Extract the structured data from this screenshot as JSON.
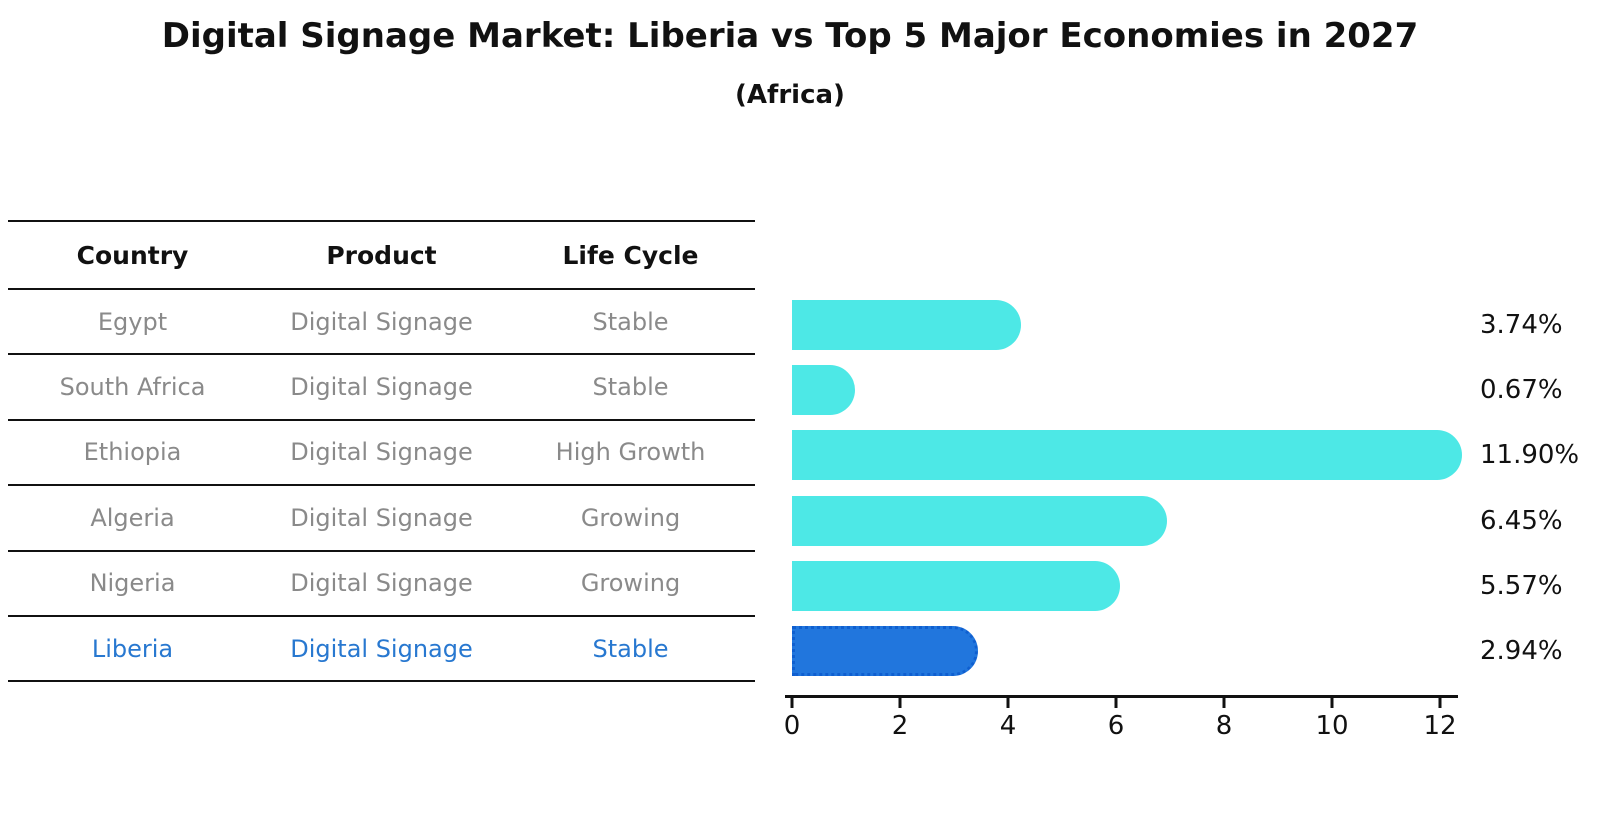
{
  "title": "Digital Signage Market: Liberia vs Top 5 Major Economies in 2027",
  "subtitle": "(Africa)",
  "table": {
    "headers": [
      "Country",
      "Product",
      "Life Cycle"
    ],
    "rows": [
      {
        "country": "Egypt",
        "product": "Digital Signage",
        "life_cycle": "Stable",
        "highlight": false
      },
      {
        "country": "South Africa",
        "product": "Digital Signage",
        "life_cycle": "Stable",
        "highlight": false
      },
      {
        "country": "Ethiopia",
        "product": "Digital Signage",
        "life_cycle": "High Growth",
        "highlight": false
      },
      {
        "country": "Algeria",
        "product": "Digital Signage",
        "life_cycle": "Growing",
        "highlight": false
      },
      {
        "country": "Nigeria",
        "product": "Digital Signage",
        "life_cycle": "Growing",
        "highlight": false
      },
      {
        "country": "Liberia",
        "product": "Digital Signage",
        "life_cycle": "Stable",
        "highlight": true
      }
    ]
  },
  "chart_data": {
    "type": "bar",
    "orientation": "horizontal",
    "title": "Digital Signage Market: Liberia vs Top 5 Major Economies in 2027",
    "subtitle": "(Africa)",
    "categories": [
      "Egypt",
      "South Africa",
      "Ethiopia",
      "Algeria",
      "Nigeria",
      "Liberia"
    ],
    "values": [
      3.74,
      0.67,
      11.9,
      6.45,
      5.57,
      2.94
    ],
    "value_labels": [
      "3.74%",
      "0.67%",
      "11.90%",
      "6.45%",
      "5.57%",
      "2.94%"
    ],
    "xlim": [
      0,
      12.3
    ],
    "xticks": [
      0,
      2,
      4,
      6,
      8,
      10,
      12
    ],
    "grid": false,
    "legend": "none",
    "bar_color": "#4DE8E6",
    "highlight_bar_color": "#2176DD",
    "highlight_border_color": "#0F5FD0",
    "highlight_text_color": "#2878D0",
    "highlight_index": 5
  }
}
